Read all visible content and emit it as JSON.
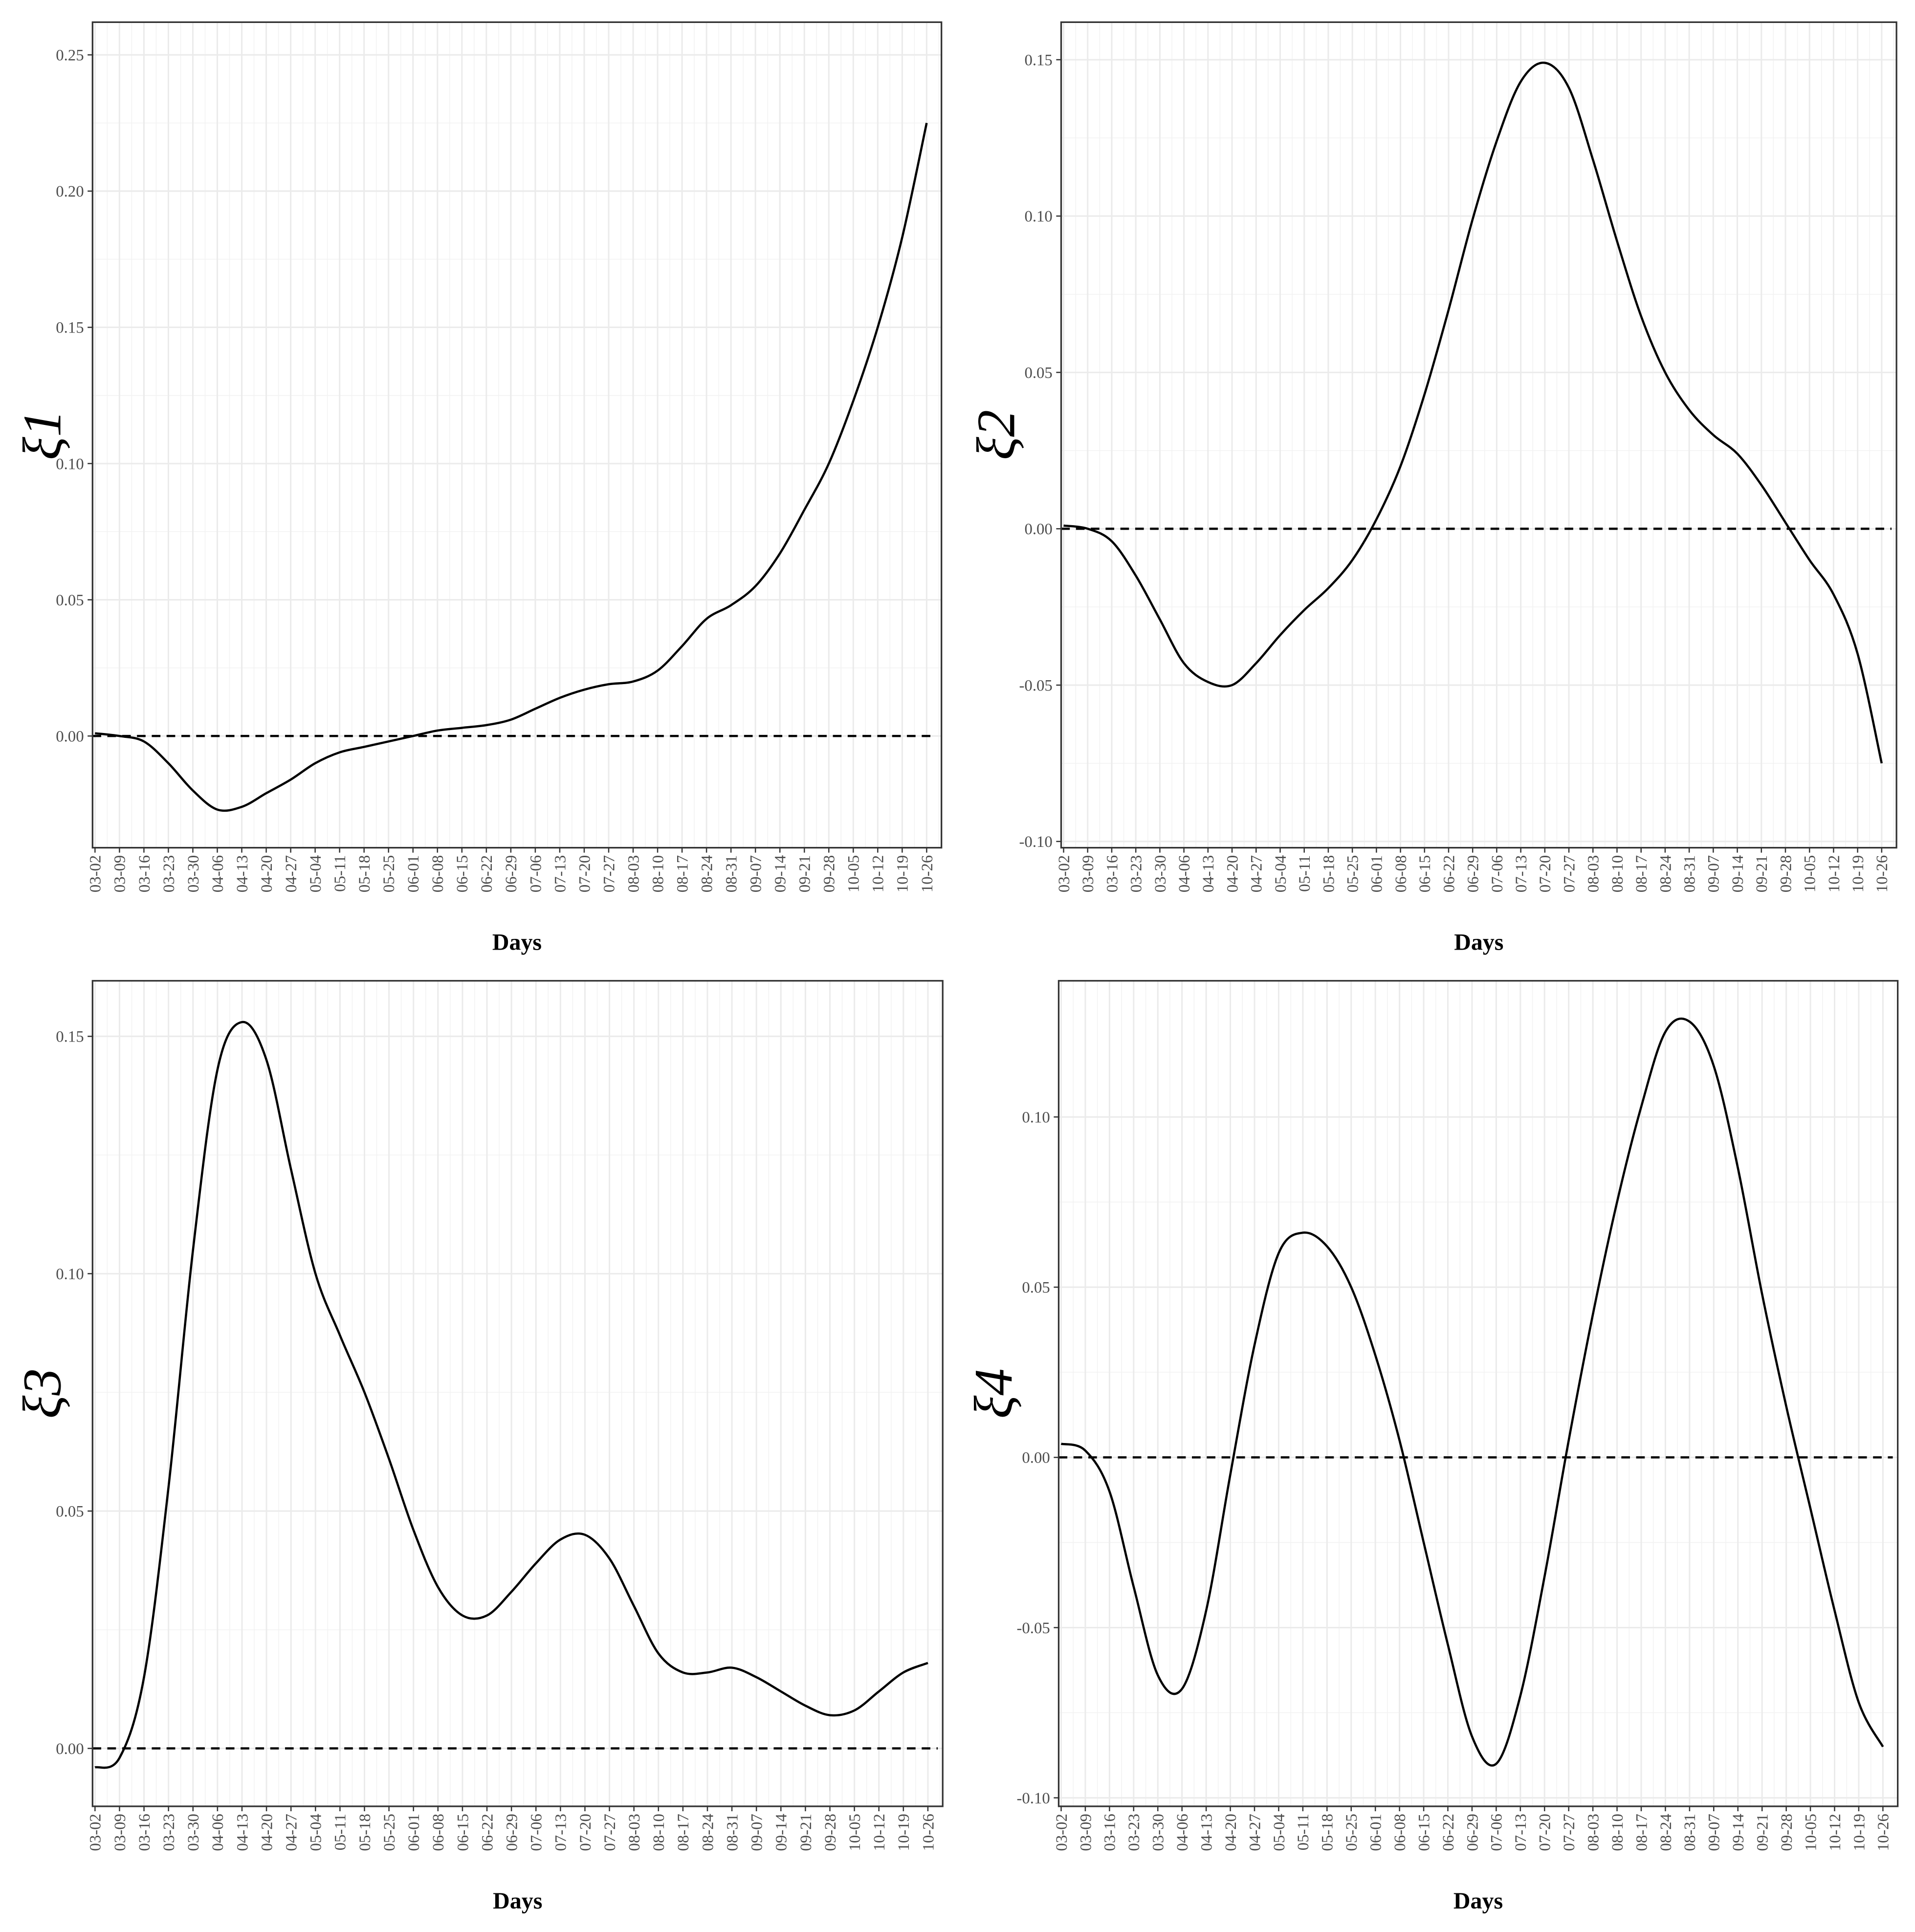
{
  "chart_data": [
    {
      "type": "line",
      "xlabel": "Days",
      "ylabel": "ξ1",
      "categories": [
        "03-02",
        "03-09",
        "03-16",
        "03-23",
        "03-30",
        "04-06",
        "04-13",
        "04-20",
        "04-27",
        "05-04",
        "05-11",
        "05-18",
        "05-25",
        "06-01",
        "06-08",
        "06-15",
        "06-22",
        "06-29",
        "07-06",
        "07-13",
        "07-20",
        "07-27",
        "08-03",
        "08-10",
        "08-17",
        "08-24",
        "08-31",
        "09-07",
        "09-14",
        "09-21",
        "09-28",
        "10-05",
        "10-12",
        "10-19",
        "10-26"
      ],
      "values": [
        0.001,
        0.0,
        -0.002,
        -0.01,
        -0.02,
        -0.027,
        -0.026,
        -0.021,
        -0.016,
        -0.01,
        -0.006,
        -0.004,
        -0.002,
        0.0,
        0.002,
        0.003,
        0.004,
        0.006,
        0.01,
        0.014,
        0.017,
        0.019,
        0.02,
        0.024,
        0.033,
        0.043,
        0.048,
        0.055,
        0.067,
        0.083,
        0.1,
        0.123,
        0.15,
        0.183,
        0.225
      ],
      "color": "#000000",
      "hline": 0,
      "ylim": [
        -0.041,
        0.262
      ],
      "yticks": [
        {
          "value": 0,
          "label": "0.00"
        },
        0.05,
        {
          "value": 0.1,
          "label": "0.10"
        },
        0.15,
        {
          "value": 0.2,
          "label": "0.20"
        },
        0.25
      ],
      "grid": true
    },
    {
      "type": "line",
      "xlabel": "Days",
      "ylabel": "ξ2",
      "categories": [
        "03-02",
        "03-09",
        "03-16",
        "03-23",
        "03-30",
        "04-06",
        "04-13",
        "04-20",
        "04-27",
        "05-04",
        "05-11",
        "05-18",
        "05-25",
        "06-01",
        "06-08",
        "06-15",
        "06-22",
        "06-29",
        "07-06",
        "07-13",
        "07-20",
        "07-27",
        "08-03",
        "08-10",
        "08-17",
        "08-24",
        "08-31",
        "09-07",
        "09-14",
        "09-21",
        "09-28",
        "10-05",
        "10-12",
        "10-19",
        "10-26"
      ],
      "values": [
        0.001,
        0.0,
        -0.004,
        -0.015,
        -0.029,
        -0.043,
        -0.049,
        -0.05,
        -0.043,
        -0.034,
        -0.026,
        -0.019,
        -0.01,
        0.003,
        0.02,
        0.043,
        0.07,
        0.099,
        0.124,
        0.143,
        0.149,
        0.141,
        0.118,
        0.092,
        0.068,
        0.05,
        0.038,
        0.03,
        0.024,
        0.014,
        0.002,
        -0.01,
        -0.021,
        -0.04,
        -0.075
      ],
      "color": "#000000",
      "hline": 0,
      "ylim": [
        -0.102,
        0.162
      ],
      "yticks": [
        {
          "value": -0.1,
          "label": "-0.10"
        },
        -0.05,
        {
          "value": 0,
          "label": "0.00"
        },
        0.05,
        {
          "value": 0.1,
          "label": "0.10"
        },
        0.15
      ],
      "grid": true
    },
    {
      "type": "line",
      "xlabel": "Days",
      "ylabel": "ξ3",
      "categories": [
        "03-02",
        "03-09",
        "03-16",
        "03-23",
        "03-30",
        "04-06",
        "04-13",
        "04-20",
        "04-27",
        "05-04",
        "05-11",
        "05-18",
        "05-25",
        "06-01",
        "06-08",
        "06-15",
        "06-22",
        "06-29",
        "07-06",
        "07-13",
        "07-20",
        "07-27",
        "08-03",
        "08-10",
        "08-17",
        "08-24",
        "08-31",
        "09-07",
        "09-14",
        "09-21",
        "09-28",
        "10-05",
        "10-12",
        "10-19",
        "10-26"
      ],
      "values": [
        -0.004,
        -0.002,
        0.015,
        0.055,
        0.105,
        0.143,
        0.153,
        0.145,
        0.122,
        0.1,
        0.087,
        0.075,
        0.061,
        0.046,
        0.034,
        0.028,
        0.028,
        0.033,
        0.039,
        0.044,
        0.045,
        0.04,
        0.03,
        0.02,
        0.016,
        0.016,
        0.017,
        0.015,
        0.012,
        0.009,
        0.007,
        0.008,
        0.012,
        0.016,
        0.018
      ],
      "color": "#000000",
      "hline": 0,
      "ylim": [
        -0.0122,
        0.1617
      ],
      "yticks": [
        {
          "value": 0,
          "label": "0.00"
        },
        0.05,
        {
          "value": 0.1,
          "label": "0.10"
        },
        0.15
      ],
      "grid": true
    },
    {
      "type": "line",
      "xlabel": "Days",
      "ylabel": "ξ4",
      "categories": [
        "03-02",
        "03-09",
        "03-16",
        "03-23",
        "03-30",
        "04-06",
        "04-13",
        "04-20",
        "04-27",
        "05-04",
        "05-11",
        "05-18",
        "05-25",
        "06-01",
        "06-08",
        "06-15",
        "06-22",
        "06-29",
        "07-06",
        "07-13",
        "07-20",
        "07-27",
        "08-03",
        "08-10",
        "08-17",
        "08-24",
        "08-31",
        "09-07",
        "09-14",
        "09-21",
        "09-28",
        "10-05",
        "10-12",
        "10-19",
        "10-26"
      ],
      "values": [
        0.004,
        0.002,
        -0.01,
        -0.038,
        -0.064,
        -0.068,
        -0.045,
        -0.005,
        0.033,
        0.06,
        0.066,
        0.062,
        0.05,
        0.03,
        0.005,
        -0.025,
        -0.055,
        -0.082,
        -0.09,
        -0.07,
        -0.035,
        0.005,
        0.042,
        0.075,
        0.103,
        0.125,
        0.128,
        0.115,
        0.085,
        0.048,
        0.015,
        -0.015,
        -0.045,
        -0.072,
        -0.085
      ],
      "color": "#000000",
      "hline": 0,
      "ylim": [
        -0.1025,
        0.14
      ],
      "yticks": [
        {
          "value": -0.1,
          "label": "-0.10"
        },
        -0.05,
        {
          "value": 0,
          "label": "0.00"
        },
        0.05,
        {
          "value": 0.1,
          "label": "0.10"
        }
      ],
      "grid": true
    }
  ]
}
